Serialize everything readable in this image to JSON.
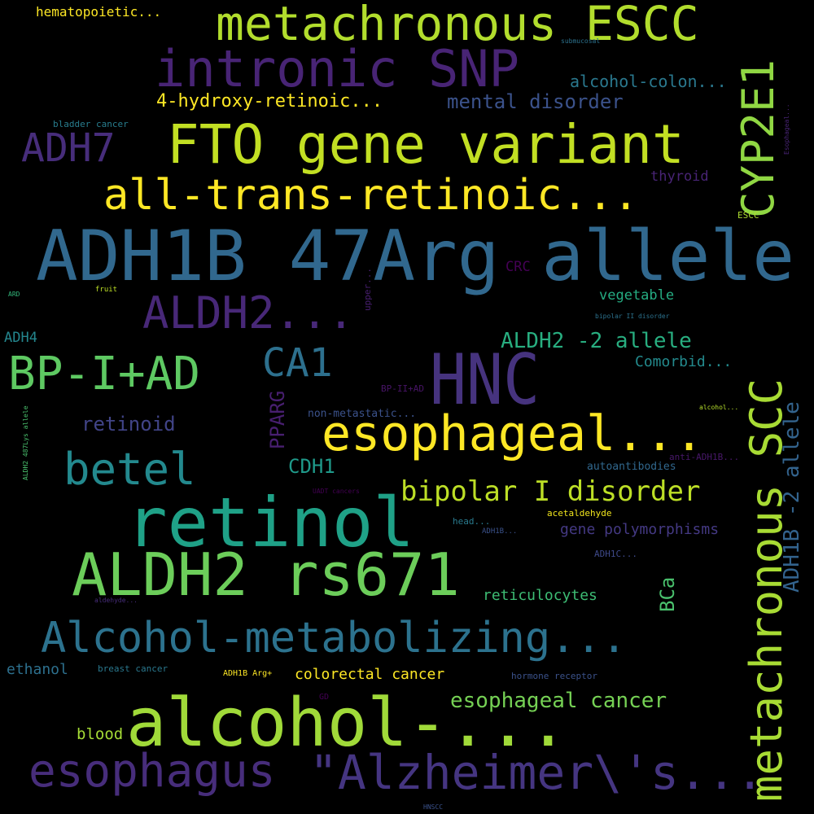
{
  "words": [
    {
      "text": "ADH1B 47Arg allele",
      "color": "#31688e"
    },
    {
      "text": "HNC",
      "color": "#46337e"
    },
    {
      "text": "retinol",
      "color": "#1fa187"
    },
    {
      "text": "alcohol-...",
      "color": "#a0da39"
    },
    {
      "text": "ALDH2 rs671",
      "color": "#6ccd5a"
    },
    {
      "text": "FTO gene variant",
      "color": "#c2df23"
    },
    {
      "text": "metachronous ESCC",
      "color": "#b2dd2d"
    },
    {
      "text": "intronic SNP",
      "color": "#482475"
    },
    {
      "text": "all-trans-retinoic...",
      "color": "#fde725"
    },
    {
      "text": "Alcohol-metabolizing...",
      "color": "#2c728e"
    },
    {
      "text": "esophageal...",
      "color": "#fde725"
    },
    {
      "text": "metachronous SCC",
      "color": "#a8db34"
    },
    {
      "text": "esophagus",
      "color": "#472d7b"
    },
    {
      "text": "\"Alzheimer\\'s...",
      "color": "#453581"
    },
    {
      "text": "BP-I+AD",
      "color": "#5ec962"
    },
    {
      "text": "ALDH2...",
      "color": "#482878"
    },
    {
      "text": "betel",
      "color": "#23898e"
    },
    {
      "text": "CYP2E1",
      "color": "#90d743"
    },
    {
      "text": "ADH7",
      "color": "#472d7b"
    },
    {
      "text": "CA1",
      "color": "#2d708e"
    },
    {
      "text": "bipolar I disorder",
      "color": "#bddf26"
    },
    {
      "text": "ADH1B -2 allele",
      "color": "#33638d"
    },
    {
      "text": "4-hydroxy-retinoic...",
      "color": "#fde725"
    },
    {
      "text": "mental disorder",
      "color": "#3b528b"
    },
    {
      "text": "alcohol-colon...",
      "color": "#2a788e"
    },
    {
      "text": "ALDH2 -2 allele",
      "color": "#28ae80"
    },
    {
      "text": "esophageal cancer",
      "color": "#75d054"
    },
    {
      "text": "retinoid",
      "color": "#414487"
    },
    {
      "text": "PPARG",
      "color": "#481f70"
    },
    {
      "text": "CDH1",
      "color": "#1f9a8a"
    },
    {
      "text": "gene polymorphisms",
      "color": "#443983"
    },
    {
      "text": "reticulocytes",
      "color": "#3dbc74"
    },
    {
      "text": "colorectal cancer",
      "color": "#fde725"
    },
    {
      "text": "vegetable",
      "color": "#25ac82"
    },
    {
      "text": "Comorbid...",
      "color": "#238a8d"
    },
    {
      "text": "BCa",
      "color": "#4ac16d"
    },
    {
      "text": "ethanol",
      "color": "#2d708e"
    },
    {
      "text": "blood",
      "color": "#a5db36"
    },
    {
      "text": "thyroid",
      "color": "#482475"
    },
    {
      "text": "CRC",
      "color": "#440154"
    },
    {
      "text": "ADH4",
      "color": "#24868e"
    },
    {
      "text": "hematopoietic...",
      "color": "#fde725"
    },
    {
      "text": "bladder cancer",
      "color": "#287d8e"
    },
    {
      "text": "non-metastatic...",
      "color": "#3b528b"
    },
    {
      "text": "autoantibodies",
      "color": "#31688e"
    },
    {
      "text": "anti-ADH1B...",
      "color": "#48186a"
    },
    {
      "text": "ESCC",
      "color": "#addc30"
    },
    {
      "text": "breast cancer",
      "color": "#2a788e"
    },
    {
      "text": "hormone receptor",
      "color": "#3b528b"
    },
    {
      "text": "ADH1C...",
      "color": "#3e4989"
    },
    {
      "text": "acetaldehyde",
      "color": "#f1e51d"
    },
    {
      "text": "head...",
      "color": "#297a8e"
    },
    {
      "text": "ADH1B...",
      "color": "#3b528b"
    },
    {
      "text": "ADH1B Arg+",
      "color": "#fde725"
    },
    {
      "text": "GD",
      "color": "#440154"
    },
    {
      "text": "HNSCC",
      "color": "#3b528b"
    },
    {
      "text": "upper...",
      "color": "#481f70"
    },
    {
      "text": "BP-II+AD",
      "color": "#481467"
    },
    {
      "text": "submucosal",
      "color": "#2c728e"
    },
    {
      "text": "Esophageal...",
      "color": "#482475"
    },
    {
      "text": "fruit",
      "color": "#bddf26"
    },
    {
      "text": "ARD",
      "color": "#32b67a"
    },
    {
      "text": "bipolar II disorder",
      "color": "#2c728e"
    },
    {
      "text": "alcohol...",
      "color": "#b5de2b"
    },
    {
      "text": "UADT cancers",
      "color": "#440154"
    },
    {
      "text": "aldehyde...",
      "color": "#472d7b"
    },
    {
      "text": "ALDH2 487Lys allele",
      "color": "#4ac16d"
    }
  ]
}
